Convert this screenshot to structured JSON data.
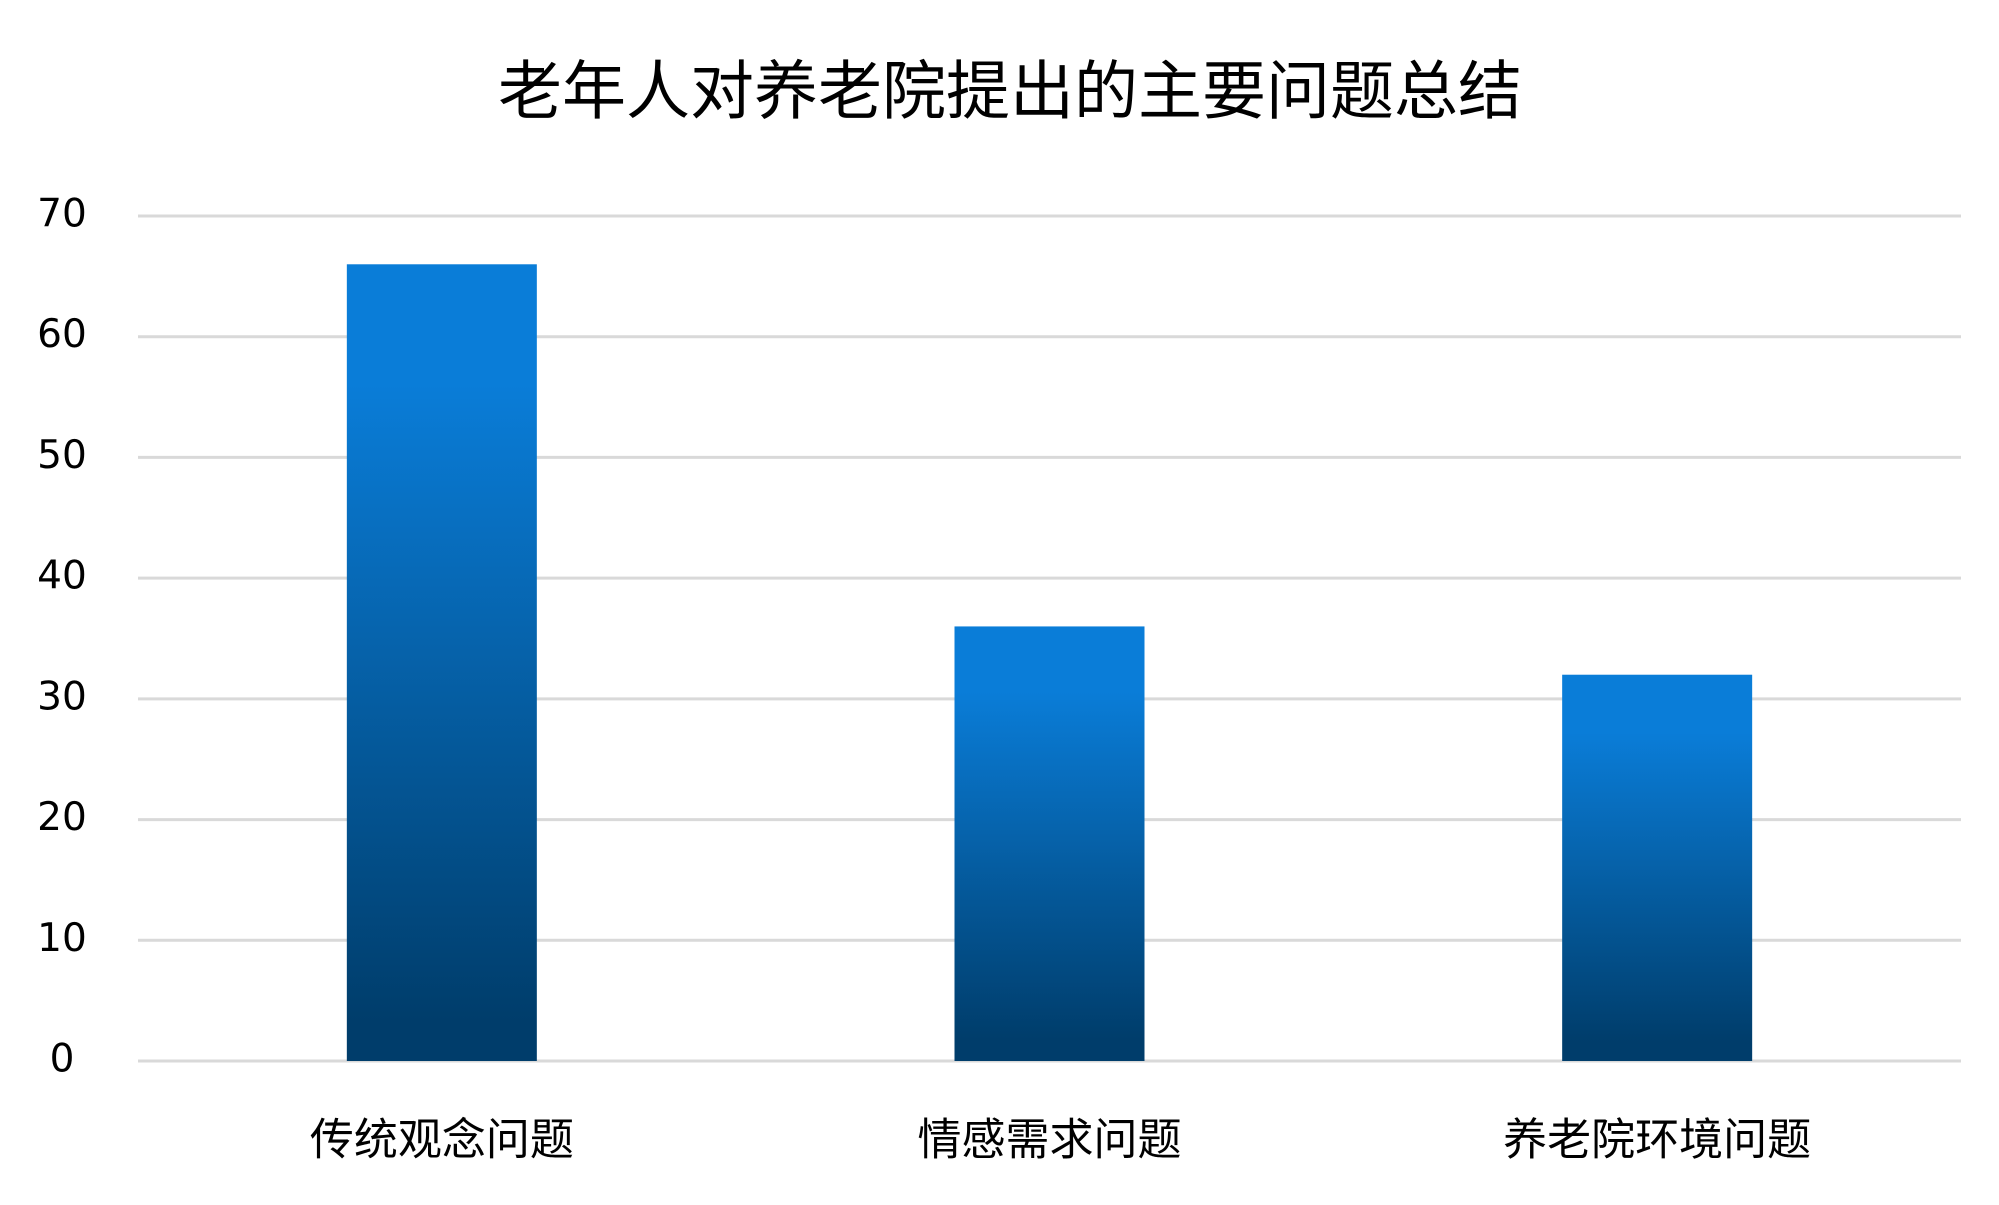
{
  "chart_data": {
    "type": "bar",
    "title": "老年人对养老院提出的主要问题总结",
    "categories": [
      "传统观念问题",
      "情感需求问题",
      "养老院环境问题"
    ],
    "values": [
      66,
      36,
      32
    ],
    "gradient": [
      "#0a7dd8",
      "#003d6b"
    ],
    "ylim": [
      0,
      70
    ],
    "yticks": [
      0,
      10,
      20,
      30,
      40,
      50,
      60,
      70
    ],
    "grid": true
  }
}
